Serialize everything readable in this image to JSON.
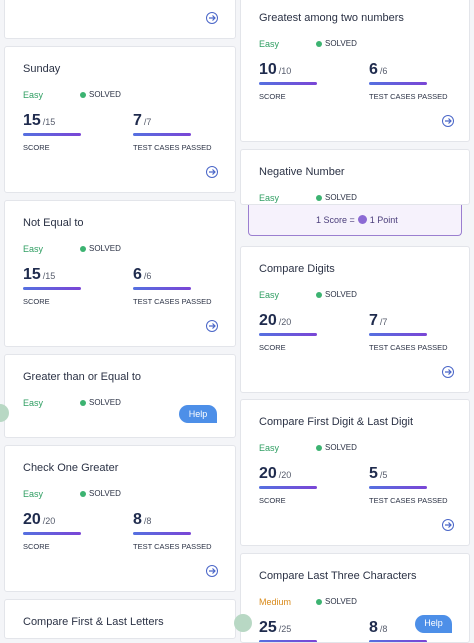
{
  "labels": {
    "score": "SCORE",
    "tests": "TEST CASES PASSED"
  },
  "help": "Help",
  "tooltip": {
    "left": "1 Score =",
    "right": "1 Point"
  },
  "cards": [
    {
      "column": "left"
    },
    {
      "column": "left",
      "title": "Sunday",
      "difficulty": "Easy",
      "status": "SOLVED",
      "score": "15",
      "score_max": "/15",
      "tests": "7",
      "tests_max": "/7"
    },
    {
      "column": "left",
      "title": "Not Equal to",
      "difficulty": "Easy",
      "status": "SOLVED",
      "score": "15",
      "score_max": "/15",
      "tests": "6",
      "tests_max": "/6"
    },
    {
      "column": "left",
      "title": "Greater than or Equal to",
      "difficulty": "Easy",
      "status": "SOLVED"
    },
    {
      "column": "left",
      "title": "Check One Greater",
      "difficulty": "Easy",
      "status": "SOLVED",
      "score": "20",
      "score_max": "/20",
      "tests": "8",
      "tests_max": "/8"
    },
    {
      "column": "left",
      "title": "Compare First & Last Letters"
    },
    {
      "column": "right",
      "title": "Greatest among two numbers",
      "difficulty": "Easy",
      "status": "SOLVED",
      "score": "10",
      "score_max": "/10",
      "tests": "6",
      "tests_max": "/6"
    },
    {
      "column": "right",
      "title": "Negative Number",
      "difficulty": "Easy",
      "status": "SOLVED"
    },
    {
      "column": "right",
      "title": "Compare Digits",
      "difficulty": "Easy",
      "status": "SOLVED",
      "score": "20",
      "score_max": "/20",
      "tests": "7",
      "tests_max": "/7"
    },
    {
      "column": "right",
      "title": "Compare First Digit & Last Digit",
      "difficulty": "Easy",
      "status": "SOLVED",
      "score": "20",
      "score_max": "/20",
      "tests": "5",
      "tests_max": "/5"
    },
    {
      "column": "right",
      "title": "Compare Last Three Characters",
      "difficulty": "Medium",
      "status": "SOLVED",
      "score": "25",
      "score_max": "/25",
      "tests": "8",
      "tests_max": "/8"
    }
  ]
}
